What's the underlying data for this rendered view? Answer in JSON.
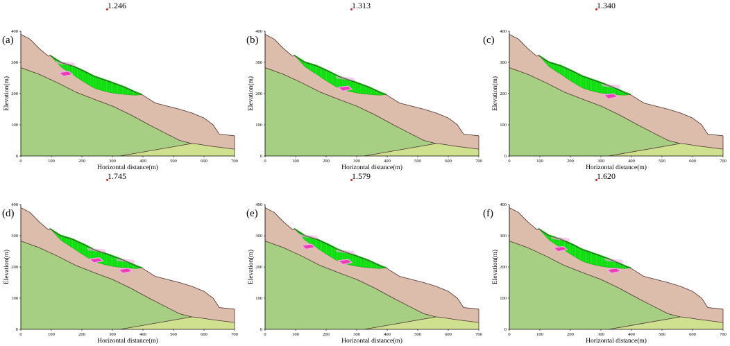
{
  "figure": {
    "x_axis_label": "Horizontal distance(m)",
    "y_axis_label": "Elevation(m)",
    "x_ticks": [
      "0",
      "100",
      "200",
      "300",
      "400",
      "500",
      "600",
      "700"
    ],
    "y_ticks": [
      "0",
      "100",
      "200",
      "300",
      "400"
    ],
    "x_range_m": [
      0,
      700
    ],
    "y_range_m": [
      0,
      400
    ],
    "colors": {
      "upper_soil_layer": "#dcbcaa",
      "bedrock_layer": "#a7cf84",
      "lower_right_layer": "#cfe08e",
      "sliding_mass": "#19f019",
      "sliding_mass_stripes": "#0d9a0d",
      "slip_wedge": "#ee3cb8",
      "slip_wedge_light": "#f3b1e6",
      "boundary_lines": "#4a3030",
      "fos_marker": "#d42020"
    }
  },
  "panels": [
    {
      "id": "a",
      "label": "(a)",
      "factor_of_safety": "1.246",
      "sliding_mass_extent_m": [
        95,
        400
      ],
      "wedges_at_m": [
        145
      ]
    },
    {
      "id": "b",
      "label": "(b)",
      "factor_of_safety": "1.313",
      "sliding_mass_extent_m": [
        95,
        400
      ],
      "wedges_at_m": [
        260
      ]
    },
    {
      "id": "c",
      "label": "(c)",
      "factor_of_safety": "1.340",
      "sliding_mass_extent_m": [
        95,
        400
      ],
      "wedges_at_m": [
        330
      ]
    },
    {
      "id": "d",
      "label": "(d)",
      "factor_of_safety": "1.745",
      "sliding_mass_extent_m": [
        95,
        400
      ],
      "wedges_at_m": [
        245,
        340
      ]
    },
    {
      "id": "e",
      "label": "(e)",
      "factor_of_safety": "1.579",
      "sliding_mass_extent_m": [
        95,
        400
      ],
      "wedges_at_m": [
        140,
        260
      ]
    },
    {
      "id": "f",
      "label": "(f)",
      "factor_of_safety": "1.620",
      "sliding_mass_extent_m": [
        95,
        400
      ],
      "wedges_at_m": [
        165,
        340
      ]
    }
  ],
  "chart_data": {
    "type": "diagram",
    "title": "",
    "xlabel": "Horizontal distance(m)",
    "ylabel": "Elevation(m)",
    "xlim": [
      0,
      700
    ],
    "ylim": [
      0,
      400
    ],
    "ground_surface_m": {
      "x": [
        0,
        30,
        60,
        90,
        95,
        130,
        170,
        210,
        240,
        290,
        340,
        380,
        400,
        440,
        480,
        520,
        560,
        600,
        630,
        650,
        700
      ],
      "y": [
        390,
        375,
        345,
        320,
        322,
        300,
        288,
        270,
        255,
        238,
        220,
        202,
        195,
        170,
        160,
        150,
        138,
        122,
        100,
        70,
        65
      ]
    },
    "bedrock_interface_m": {
      "x": [
        0,
        60,
        120,
        180,
        240,
        300,
        360,
        420,
        470,
        520,
        560,
        580,
        620,
        700
      ],
      "y": [
        283,
        262,
        235,
        205,
        182,
        160,
        132,
        100,
        75,
        50,
        40,
        38,
        32,
        22
      ]
    },
    "lower_layer_boundary_m": {
      "x": [
        325,
        560
      ],
      "y": [
        0,
        40
      ]
    },
    "factors_of_safety": [
      {
        "panel": "(a)",
        "value": 1.246
      },
      {
        "panel": "(b)",
        "value": 1.313
      },
      {
        "panel": "(c)",
        "value": 1.34
      },
      {
        "panel": "(d)",
        "value": 1.745
      },
      {
        "panel": "(e)",
        "value": 1.579
      },
      {
        "panel": "(f)",
        "value": 1.62
      }
    ]
  }
}
